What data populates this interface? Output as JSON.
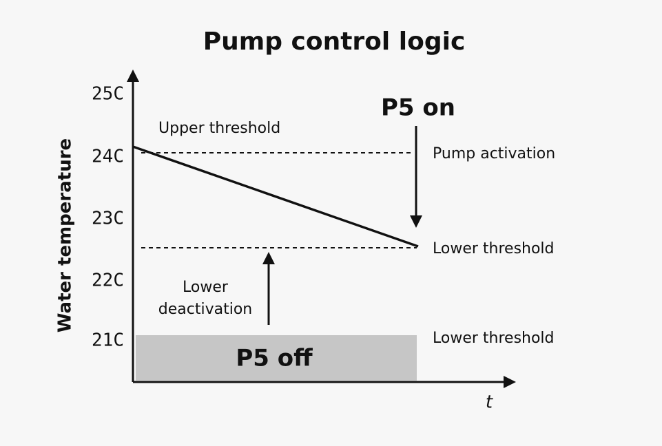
{
  "title": "Pump control logic",
  "y_axis": {
    "label": "Water temperature",
    "ticks": [
      "25C",
      "24C",
      "23C",
      "22C",
      "21C"
    ]
  },
  "x_axis": {
    "label": "t"
  },
  "annotations": {
    "upper_threshold": "Upper threshold",
    "p5_on": "P5 on",
    "pump_activation": "Pump activation",
    "lower_threshold_1": "Lower threshold",
    "lower_deactivation": [
      "Lower",
      "deactivation"
    ],
    "lower_threshold_2": "Lower threshold",
    "p5_off": "P5 off"
  }
}
